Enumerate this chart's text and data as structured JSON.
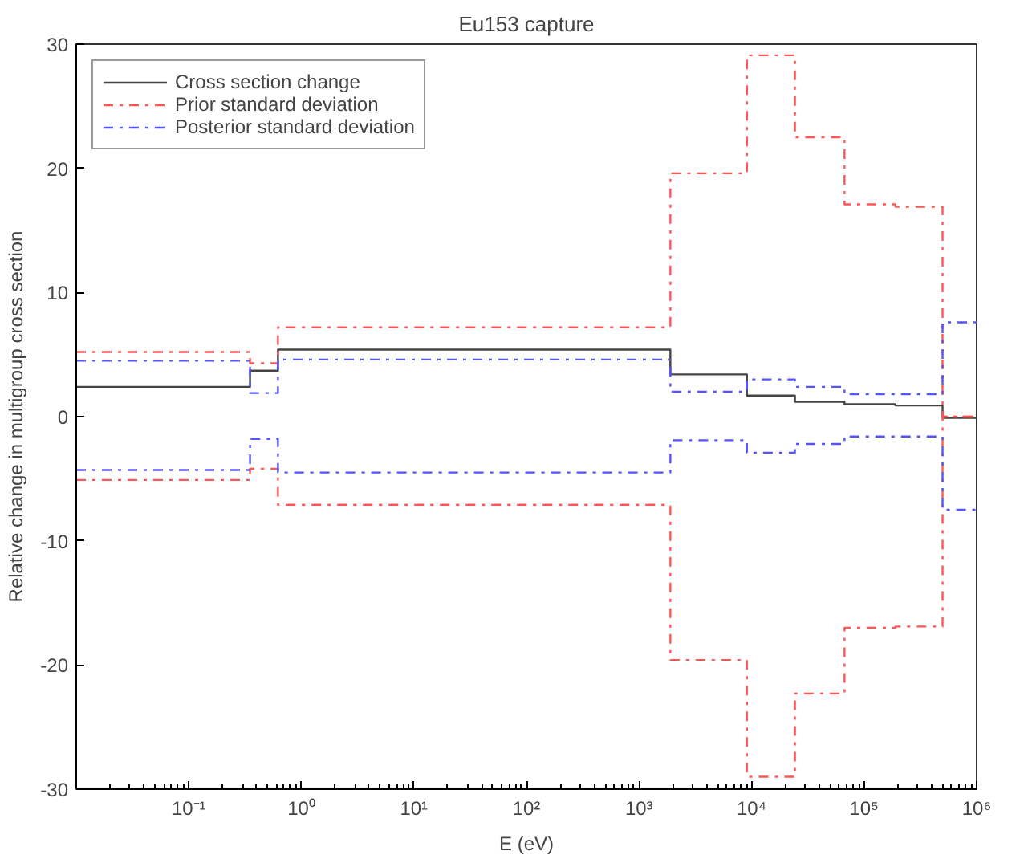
{
  "chart_data": {
    "type": "step",
    "title": "Eu153 capture",
    "xlabel": "E (eV)",
    "ylabel": "Relative change in multigroup cross section",
    "log": "x",
    "xlim": [
      0.01,
      1000000
    ],
    "ylim": [
      -30,
      30
    ],
    "xticks": [
      {
        "value": 0.1,
        "label": "10⁻¹"
      },
      {
        "value": 1,
        "label": "10⁰"
      },
      {
        "value": 10,
        "label": "10¹"
      },
      {
        "value": 100,
        "label": "10²"
      },
      {
        "value": 1000,
        "label": "10³"
      },
      {
        "value": 10000,
        "label": "10⁴"
      },
      {
        "value": 100000,
        "label": "10⁵"
      },
      {
        "value": 1000000,
        "label": "10⁶"
      }
    ],
    "yticks": [
      -30,
      -20,
      -10,
      0,
      10,
      20,
      30
    ],
    "grid": false,
    "legend": "top left",
    "marker": "none",
    "x": [
      0.01,
      0.35,
      0.62,
      1900,
      9100,
      24300,
      67000,
      190000,
      498000,
      1000000
    ],
    "series": [
      {
        "name": "Cross section change",
        "color": "#444444",
        "line_style": "solid",
        "values": [
          2.4,
          3.7,
          5.4,
          3.4,
          1.7,
          1.2,
          1.0,
          0.9,
          -0.1,
          -0.1
        ]
      },
      {
        "name": "Prior standard deviation",
        "color": "#ff5555",
        "line_style": "dashdot",
        "values": [
          5.2,
          4.3,
          7.2,
          19.6,
          29.1,
          22.5,
          17.1,
          16.9,
          0,
          0
        ]
      },
      {
        "color": "#ff5555",
        "line_style": "dashdot",
        "values": [
          -5.1,
          -4.2,
          -7.1,
          -19.6,
          -29.0,
          -22.3,
          -17.0,
          -16.9,
          0,
          0
        ]
      },
      {
        "name": "Posterior standard deviation",
        "color": "#5555ff",
        "line_style": "dashdot",
        "values": [
          4.5,
          1.9,
          4.6,
          2.0,
          3.0,
          2.4,
          1.8,
          1.8,
          7.6,
          7.6
        ]
      },
      {
        "color": "#5555ff",
        "line_style": "dashdot",
        "values": [
          -4.3,
          -1.8,
          -4.5,
          -1.9,
          -2.9,
          -2.2,
          -1.6,
          -1.6,
          -7.5,
          -7.5
        ]
      }
    ]
  }
}
